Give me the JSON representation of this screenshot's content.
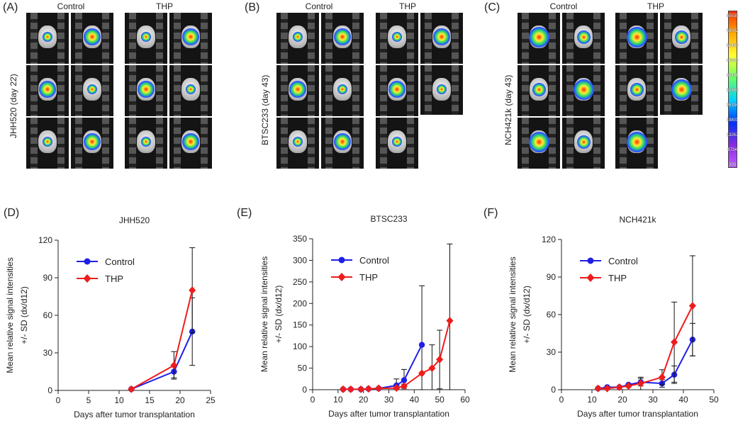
{
  "images": {
    "panels": [
      {
        "label": "(A)",
        "row_label": "JHH520 (day 22)",
        "group_labels": [
          "Control",
          "THP"
        ]
      },
      {
        "label": "(B)",
        "row_label": "BTSC233 (day 43)",
        "group_labels": [
          "Control",
          "THP"
        ]
      },
      {
        "label": "(C)",
        "row_label": "NCH421k (day 43)",
        "group_labels": [
          "Control",
          "THP"
        ]
      }
    ],
    "colorbar_ticks": [
      "65535",
      "59002",
      "52468",
      "45935",
      "39401",
      "32868",
      "26334",
      "19801",
      "13267",
      "6734",
      "200"
    ]
  },
  "chart_data": [
    {
      "type": "line",
      "panel_label": "(D)",
      "title": "JHH520",
      "xlabel": "Days after tumor transplantation",
      "ylabel_line1": "Mean relative signal intensities",
      "ylabel_line2": "+/- SD (dx/d12)",
      "xlim": [
        0,
        25
      ],
      "ylim": [
        0,
        120
      ],
      "xticks": [
        0,
        5,
        10,
        15,
        20,
        25
      ],
      "yticks": [
        0,
        30,
        60,
        90,
        120
      ],
      "legend_position": "top-left",
      "series": [
        {
          "name": "Control",
          "color": "#1f1fe6",
          "marker": "circle",
          "x": [
            12,
            19,
            22
          ],
          "y": [
            1,
            15,
            47
          ],
          "err": [
            0,
            5,
            27
          ]
        },
        {
          "name": "THP",
          "color": "#ee1c1c",
          "marker": "diamond",
          "x": [
            12,
            19,
            22
          ],
          "y": [
            1,
            20,
            80
          ],
          "err": [
            0,
            11,
            34
          ]
        }
      ]
    },
    {
      "type": "line",
      "panel_label": "(E)",
      "title": "BTSC233",
      "xlabel": "Days after tumor transplantation",
      "ylabel_line1": "Mean relative signal intensities",
      "ylabel_line2": "+/- SD (dx/d12)",
      "xlim": [
        0,
        60
      ],
      "ylim": [
        0,
        350
      ],
      "xticks": [
        0,
        10,
        20,
        30,
        40,
        50,
        60
      ],
      "yticks": [
        0,
        50,
        100,
        150,
        200,
        250,
        300,
        350
      ],
      "legend_position": "top-left",
      "series": [
        {
          "name": "Control",
          "color": "#1f1fe6",
          "marker": "circle",
          "x": [
            12,
            15,
            19,
            22,
            26,
            33,
            36,
            43
          ],
          "y": [
            1,
            1,
            1,
            2,
            3,
            10,
            22,
            104
          ],
          "err": [
            0,
            0,
            0,
            0,
            1,
            15,
            25,
            137
          ]
        },
        {
          "name": "THP",
          "color": "#ee1c1c",
          "marker": "diamond",
          "x": [
            12,
            15,
            19,
            22,
            26,
            33,
            36,
            43,
            47,
            50,
            54
          ],
          "y": [
            1,
            1,
            1,
            2,
            3,
            4,
            8,
            38,
            50,
            70,
            160
          ],
          "err": [
            0,
            0,
            0,
            0,
            0,
            2,
            5,
            0,
            54,
            68,
            178
          ]
        }
      ]
    },
    {
      "type": "line",
      "panel_label": "(F)",
      "title": "NCH421k",
      "xlabel": "Days after tumor transplantation",
      "ylabel_line1": "Mean relative signal intensities",
      "ylabel_line2": "+/- SD (dx/d12)",
      "xlim": [
        0,
        50
      ],
      "ylim": [
        0,
        120
      ],
      "xticks": [
        0,
        10,
        20,
        30,
        40,
        50
      ],
      "yticks": [
        0,
        30,
        60,
        90,
        120
      ],
      "legend_position": "top-left",
      "series": [
        {
          "name": "Control",
          "color": "#1f1fe6",
          "marker": "circle",
          "x": [
            12,
            15,
            19,
            22,
            26,
            33,
            37,
            43
          ],
          "y": [
            1,
            2,
            2,
            4,
            6,
            5,
            12,
            40
          ],
          "err": [
            0,
            0,
            0,
            0,
            3,
            3,
            7,
            13
          ]
        },
        {
          "name": "THP",
          "color": "#ee1c1c",
          "marker": "diamond",
          "x": [
            12,
            15,
            19,
            22,
            26,
            33,
            37,
            43
          ],
          "y": [
            1,
            1,
            2,
            3,
            5,
            10,
            38,
            67
          ],
          "err": [
            0,
            0,
            0,
            1,
            5,
            6,
            32,
            40
          ]
        }
      ]
    }
  ]
}
